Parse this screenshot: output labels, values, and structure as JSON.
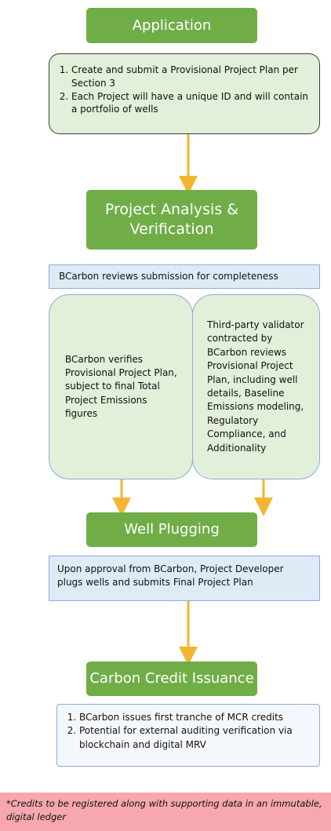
{
  "steps": [
    {
      "title": "Application",
      "items": [
        "Create and submit a Provisional Project Plan per Section 3",
        "Each Project will have a unique ID and will contain a portfolio of wells"
      ]
    },
    {
      "title": "Project Analysis & Verification",
      "summary": "BCarbon reviews submission for completeness",
      "left": "BCarbon verifies Provisional Project Plan, subject to final Total Project Emissions figures",
      "right": "Third-party validator contracted by BCarbon reviews Provisional Project Plan, including well details, Baseline Emissions modeling, Regulatory Compliance, and Additionality"
    },
    {
      "title": "Well Plugging",
      "summary": "Upon approval from BCarbon, Project Developer plugs wells and submits Final Project Plan"
    },
    {
      "title": "Carbon Credit Issuance",
      "items": [
        "BCarbon issues first tranche of MCR credits",
        "Potential for external auditing verification via blockchain and digital MRV"
      ]
    }
  ],
  "note": "*Credits to be registered along with supporting data in an immutable, digital ledger"
}
